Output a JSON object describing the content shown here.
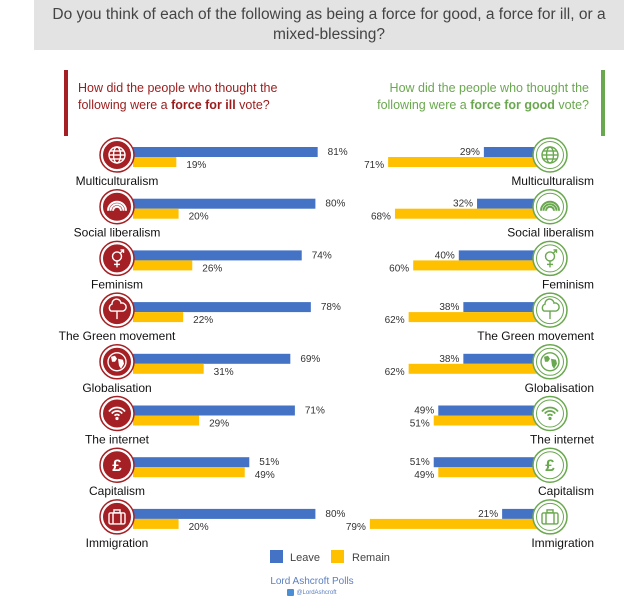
{
  "question": "Do you think of each of the following as being a force for good, a force for ill, or a mixed-blessing?",
  "panels": {
    "ill": {
      "prefix": "How did the people who thought the following were a ",
      "em": "force for ill",
      "suffix": " vote?"
    },
    "good": {
      "prefix": "How did the people who thought the following were a ",
      "em": "force for good",
      "suffix": " vote?"
    }
  },
  "colors": {
    "leave": "#4472c4",
    "remain": "#ffc000",
    "ill_accent": "#a52024",
    "good_accent": "#6aa84f"
  },
  "legend": {
    "leave": "Leave",
    "remain": "Remain"
  },
  "footer": {
    "source": "Lord Ashcroft Polls",
    "handle": "@LordAshcroft"
  },
  "chart_data": [
    {
      "type": "bar",
      "title": "force for ill",
      "categories": [
        "Multiculturalism",
        "Social liberalism",
        "Feminism",
        "The Green movement",
        "Globalisation",
        "The internet",
        "Capitalism",
        "Immigration"
      ],
      "icons": [
        "globe-icon",
        "rainbow-icon",
        "gender-symbol-icon",
        "tree-icon",
        "world-map-icon",
        "wifi-icon",
        "pound-sign-icon",
        "suitcase-icon"
      ],
      "series": [
        {
          "name": "Leave",
          "values": [
            81,
            80,
            74,
            78,
            69,
            71,
            51,
            80
          ]
        },
        {
          "name": "Remain",
          "values": [
            19,
            20,
            26,
            22,
            31,
            29,
            49,
            20
          ]
        }
      ]
    },
    {
      "type": "bar",
      "title": "force for good",
      "categories": [
        "Multiculturalism",
        "Social liberalism",
        "Feminism",
        "The Green movement",
        "Globalisation",
        "The internet",
        "Capitalism",
        "Immigration"
      ],
      "icons": [
        "globe-icon",
        "rainbow-icon",
        "gender-symbol-icon",
        "tree-icon",
        "world-map-icon",
        "wifi-icon",
        "pound-sign-icon",
        "suitcase-icon"
      ],
      "series": [
        {
          "name": "Leave",
          "values": [
            29,
            32,
            40,
            38,
            38,
            49,
            51,
            21
          ]
        },
        {
          "name": "Remain",
          "values": [
            71,
            68,
            60,
            62,
            62,
            51,
            49,
            79
          ]
        }
      ]
    }
  ]
}
